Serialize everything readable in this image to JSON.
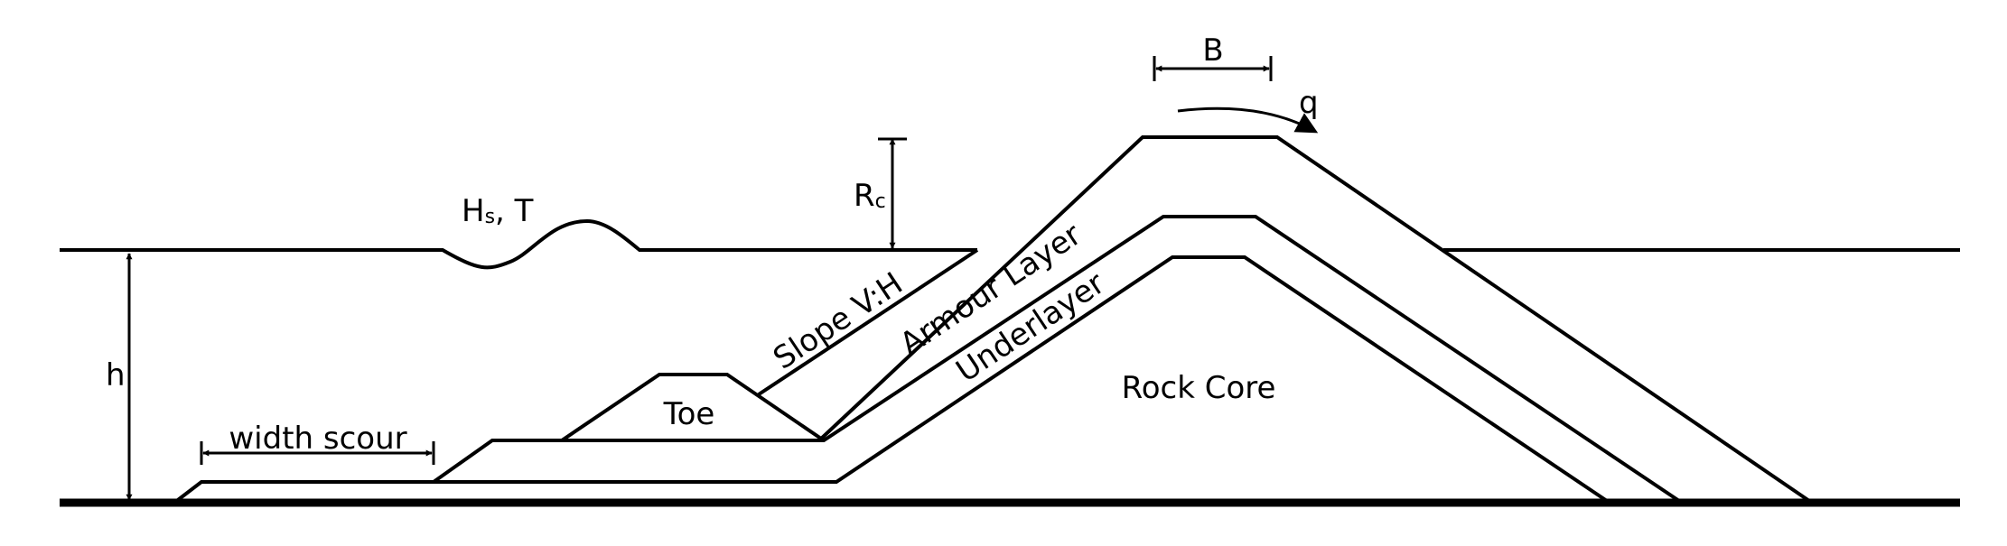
{
  "labels": {
    "crest_width": "B",
    "overtopping": "q",
    "freeboard": "R",
    "freeboard_sub": "c",
    "wave_h": "H",
    "wave_sub": "s",
    "wave_rest": ", T",
    "slope": "Slope V:H",
    "armour": "Armour Layer",
    "underlayer": "Underlayer",
    "core": "Rock Core",
    "toe": "Toe",
    "depth": "h",
    "scour": "width scour"
  },
  "colors": {
    "line": "#000000",
    "background": "#ffffff"
  }
}
